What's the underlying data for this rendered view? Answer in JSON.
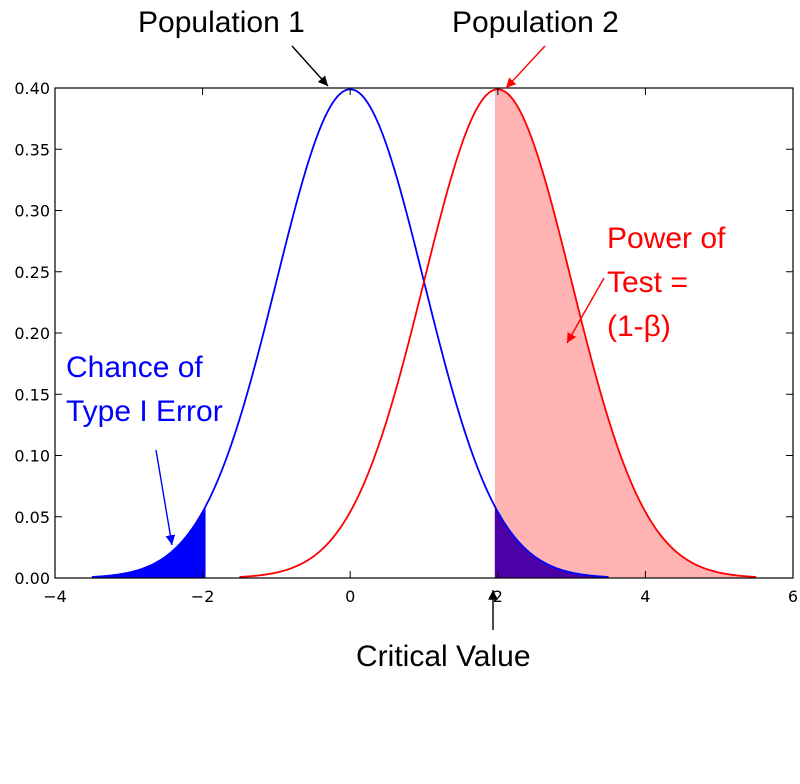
{
  "chart_data": {
    "type": "line",
    "title": "",
    "xlabel": "",
    "ylabel": "",
    "xlim": [
      -4,
      6
    ],
    "ylim": [
      0,
      0.4
    ],
    "grid": false,
    "x_ticks": [
      "−4",
      "−2",
      "0",
      "2",
      "4",
      "6"
    ],
    "y_ticks": [
      "0.00",
      "0.05",
      "0.10",
      "0.15",
      "0.20",
      "0.25",
      "0.30",
      "0.35",
      "0.40"
    ],
    "critical_value": 1.96,
    "series": [
      {
        "name": "Population 1",
        "distribution": "normal",
        "mean": 0,
        "sd": 1,
        "x_range": [
          -3.5,
          3.5
        ],
        "color": "#0000ff"
      },
      {
        "name": "Population 2",
        "distribution": "normal",
        "mean": 2,
        "sd": 1,
        "x_range": [
          -1.5,
          5.5
        ],
        "color": "#ff0000"
      }
    ],
    "shaded_regions": [
      {
        "curve": "Population 1",
        "from": -3.5,
        "to": -1.96,
        "color": "#0000ff",
        "label": "Chance of Type I Error"
      },
      {
        "curve": "Population 2",
        "from": 1.96,
        "to": 5.5,
        "color": "#ffb3b3",
        "label": "Power of Test = (1-β)"
      },
      {
        "curve": "Population 1",
        "from": 1.96,
        "to": 3.5,
        "color": "#4b00a8"
      }
    ]
  },
  "annotations": {
    "population1": "Population 1",
    "population2": "Population 2",
    "type1_line1": "Chance of",
    "type1_line2": "Type I Error",
    "power_line1": "Power of",
    "power_line2": "Test =",
    "power_line3": "(1-β)",
    "critical": "Critical Value"
  },
  "colors": {
    "pop1": "#0000ff",
    "pop2": "#ff0000",
    "power_fill": "#ffb3b3",
    "overlap_fill": "#4b00a8",
    "arrow": "#000000"
  }
}
